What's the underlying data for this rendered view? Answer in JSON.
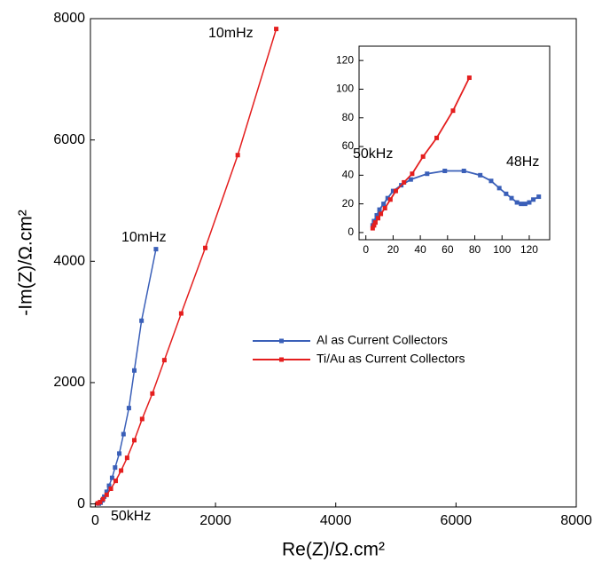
{
  "chart_data": [
    {
      "type": "line",
      "x_label": "Re(Z)/Ω.cm²",
      "y_label": "-Im(Z)/Ω.cm²",
      "xlim": [
        -80,
        8000
      ],
      "ylim": [
        -50,
        8000
      ],
      "xticks": [
        0,
        2000,
        4000,
        6000,
        8000
      ],
      "yticks": [
        0,
        2000,
        4000,
        6000,
        8000
      ],
      "legend": "right",
      "series": [
        {
          "name": "Al as Current Collectors",
          "color": "#3a5fb8",
          "x": [
            60,
            90,
            120,
            150,
            190,
            230,
            280,
            330,
            400,
            470,
            560,
            650,
            770,
            1010
          ],
          "values": [
            5,
            20,
            60,
            120,
            200,
            300,
            430,
            600,
            830,
            1150,
            1580,
            2200,
            3020,
            4200
          ]
        },
        {
          "name": "Ti/Au as Current Collectors",
          "color": "#e41e1e",
          "x": [
            40,
            80,
            130,
            190,
            260,
            340,
            430,
            530,
            650,
            780,
            950,
            1150,
            1430,
            1830,
            2370,
            3010
          ],
          "values": [
            10,
            30,
            80,
            150,
            250,
            380,
            550,
            760,
            1050,
            1400,
            1820,
            2370,
            3140,
            4220,
            5750,
            7830
          ]
        }
      ],
      "annotations": [
        {
          "text": "10mHz",
          "color": "#e41e1e"
        },
        {
          "text": "10mHz",
          "color": "#3a5fb8"
        },
        {
          "text": "50kHz",
          "color": "#e41e1e"
        }
      ]
    },
    {
      "type": "line",
      "xlim": [
        -5,
        135
      ],
      "ylim": [
        -5,
        130
      ],
      "xticks": [
        0,
        20,
        40,
        60,
        80,
        100,
        120
      ],
      "yticks": [
        0,
        20,
        40,
        60,
        80,
        100,
        120
      ],
      "series": [
        {
          "color": "#3a5fb8",
          "x": [
            5,
            6,
            8,
            10,
            13,
            16,
            20,
            26,
            33,
            45,
            58,
            72,
            84,
            92,
            98,
            103,
            107,
            111,
            114,
            117,
            120,
            123,
            127
          ],
          "values": [
            5,
            8,
            12,
            16,
            20,
            24,
            29,
            33,
            37,
            41,
            43,
            43,
            40,
            36,
            31,
            27,
            24,
            21,
            20,
            20,
            21,
            23,
            25
          ]
        },
        {
          "color": "#e41e1e",
          "x": [
            5,
            6,
            7,
            9,
            11,
            14,
            18,
            22,
            28,
            34,
            42,
            52,
            64,
            76
          ],
          "values": [
            3,
            5,
            7,
            10,
            13,
            17,
            23,
            29,
            35,
            41,
            53,
            66,
            85,
            108
          ]
        }
      ],
      "annotations": [
        {
          "text": "50kHz",
          "color": "#e41e1e"
        },
        {
          "text": "48Hz",
          "color": "#3a5fb8"
        }
      ]
    }
  ]
}
